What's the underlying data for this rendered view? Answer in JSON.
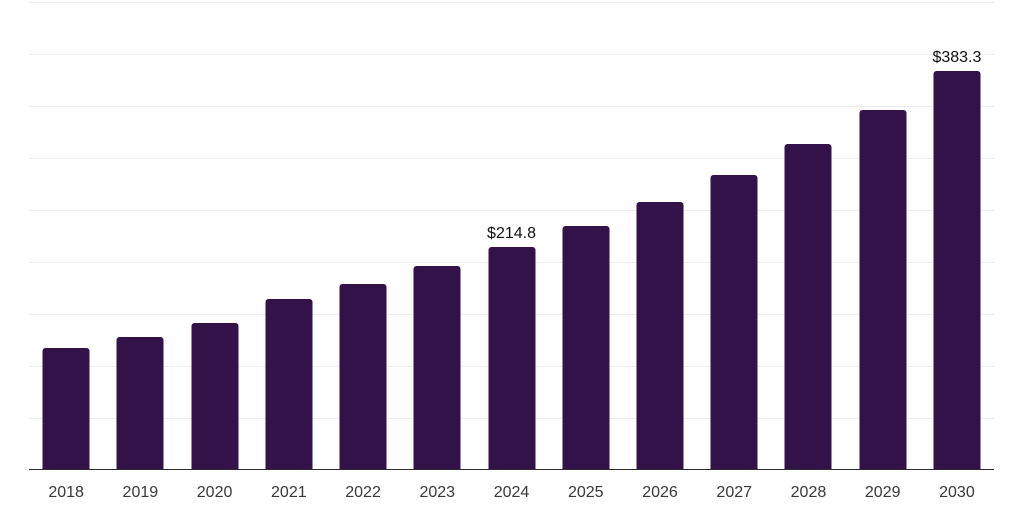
{
  "chart_data": {
    "type": "bar",
    "title": "",
    "xlabel": "",
    "ylabel": "",
    "categories": [
      "2018",
      "2019",
      "2020",
      "2021",
      "2022",
      "2023",
      "2024",
      "2025",
      "2026",
      "2027",
      "2028",
      "2029",
      "2030"
    ],
    "values": [
      117.6,
      127.5,
      141.0,
      164.7,
      179.1,
      196.5,
      214.8,
      234.8,
      257.9,
      284.0,
      313.8,
      346.2,
      383.3
    ],
    "data_labels": {
      "2024": "$214.8",
      "2030": "$383.3"
    },
    "ylim": [
      0,
      450
    ],
    "gridline_step": 50,
    "grid": "horizontal-only",
    "legend": "none",
    "bar_color": "#331249",
    "axis_line_color": "#2d2d2d",
    "gridline_color": "#ededed",
    "data_label_color": "#111111",
    "tick_label_color": "#383838",
    "background_color": "#ffffff"
  }
}
